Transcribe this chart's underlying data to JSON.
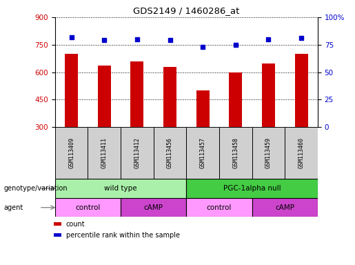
{
  "title": "GDS2149 / 1460286_at",
  "samples": [
    "GSM113409",
    "GSM113411",
    "GSM113412",
    "GSM113456",
    "GSM113457",
    "GSM113458",
    "GSM113459",
    "GSM113460"
  ],
  "counts": [
    700,
    635,
    660,
    630,
    500,
    600,
    648,
    700
  ],
  "percentile_ranks": [
    82,
    79,
    80,
    79,
    73,
    75,
    80,
    81
  ],
  "ylim_left": [
    300,
    900
  ],
  "ylim_right": [
    0,
    100
  ],
  "yticks_left": [
    300,
    450,
    600,
    750,
    900
  ],
  "yticks_right": [
    0,
    25,
    50,
    75,
    100
  ],
  "ytick_labels_right": [
    "0",
    "25",
    "50",
    "75",
    "100%"
  ],
  "bar_color": "#cc0000",
  "dot_color": "#0000cc",
  "groups_genotype": [
    {
      "label": "wild type",
      "start": 0,
      "end": 4,
      "color": "#aaf0aa"
    },
    {
      "label": "PGC-1alpha null",
      "start": 4,
      "end": 8,
      "color": "#44cc44"
    }
  ],
  "groups_agent": [
    {
      "label": "control",
      "start": 0,
      "end": 2,
      "color": "#ff99ff"
    },
    {
      "label": "cAMP",
      "start": 2,
      "end": 4,
      "color": "#cc44cc"
    },
    {
      "label": "control",
      "start": 4,
      "end": 6,
      "color": "#ff99ff"
    },
    {
      "label": "cAMP",
      "start": 6,
      "end": 8,
      "color": "#cc44cc"
    }
  ],
  "legend_labels": [
    "count",
    "percentile rank within the sample"
  ],
  "legend_colors": [
    "#cc0000",
    "#0000cc"
  ],
  "label_genotype": "genotype/variation",
  "label_agent": "agent",
  "sample_bg": "#d0d0d0",
  "bar_width": 0.4
}
